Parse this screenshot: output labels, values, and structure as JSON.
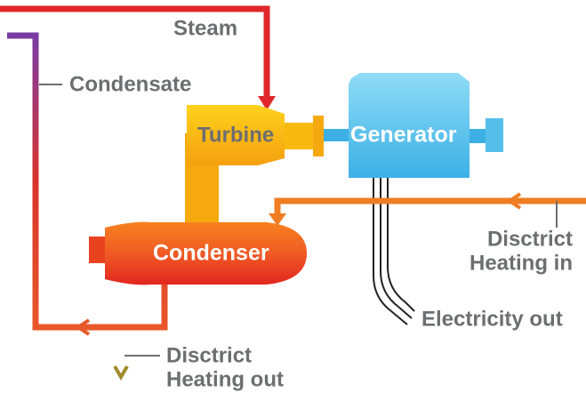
{
  "labels": {
    "steam": "Steam",
    "condensate": "Condensate",
    "turbine": "Turbine",
    "generator": "Generator",
    "condenser": "Condenser",
    "heating_in": [
      "Disctrict",
      "Heating in"
    ],
    "electricity_out": "Electricity out",
    "heating_out": [
      "Disctrict",
      "Heating out"
    ]
  }
}
